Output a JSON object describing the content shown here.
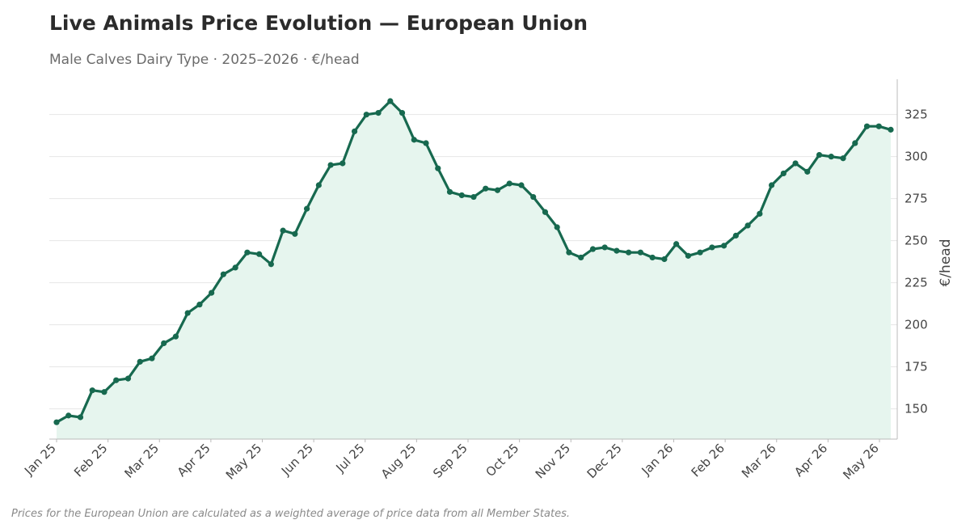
{
  "header": {
    "title": "Live Animals Price Evolution — European Union",
    "subtitle": "Male Calves Dairy Type · 2025–2026 · €/head"
  },
  "footnote": "Prices for the European Union are calculated as a weighted average of price data from all Member States.",
  "colors": {
    "line": "#17694f",
    "fill": "#e6f5ee",
    "grid": "#e6e6e6",
    "axis": "#bbbbbb"
  },
  "chart_data": {
    "type": "area",
    "title": "Live Animals Price Evolution — European Union",
    "subtitle": "Male Calves Dairy Type · 2025–2026 · €/head",
    "xlabel": "",
    "ylabel": "€/head",
    "y_axis_position": "right",
    "ylim": [
      132,
      346
    ],
    "yticks": [
      150,
      175,
      200,
      225,
      250,
      275,
      300,
      325
    ],
    "grid": true,
    "legend": "none",
    "x_tick_labels": [
      "Jan 25",
      "Feb 25",
      "Mar 25",
      "Apr 25",
      "May 25",
      "Jun 25",
      "Jul 25",
      "Aug 25",
      "Sep 25",
      "Oct 25",
      "Nov 25",
      "Dec 25",
      "Jan 26",
      "Feb 26",
      "Mar 26",
      "Apr 26",
      "May 26"
    ],
    "series": [
      {
        "name": "",
        "values": [
          142,
          146,
          145,
          161,
          160,
          167,
          168,
          178,
          180,
          189,
          193,
          207,
          212,
          219,
          230,
          234,
          243,
          242,
          236,
          256,
          254,
          269,
          283,
          295,
          296,
          315,
          325,
          326,
          333,
          326,
          310,
          308,
          293,
          279,
          277,
          276,
          281,
          280,
          284,
          283,
          276,
          267,
          258,
          243,
          240,
          245,
          246,
          244,
          243,
          243,
          240,
          239,
          248,
          241,
          243,
          246,
          247,
          253,
          259,
          266,
          283,
          290,
          296,
          291,
          301,
          300,
          299,
          308,
          318,
          318,
          316
        ]
      }
    ]
  }
}
